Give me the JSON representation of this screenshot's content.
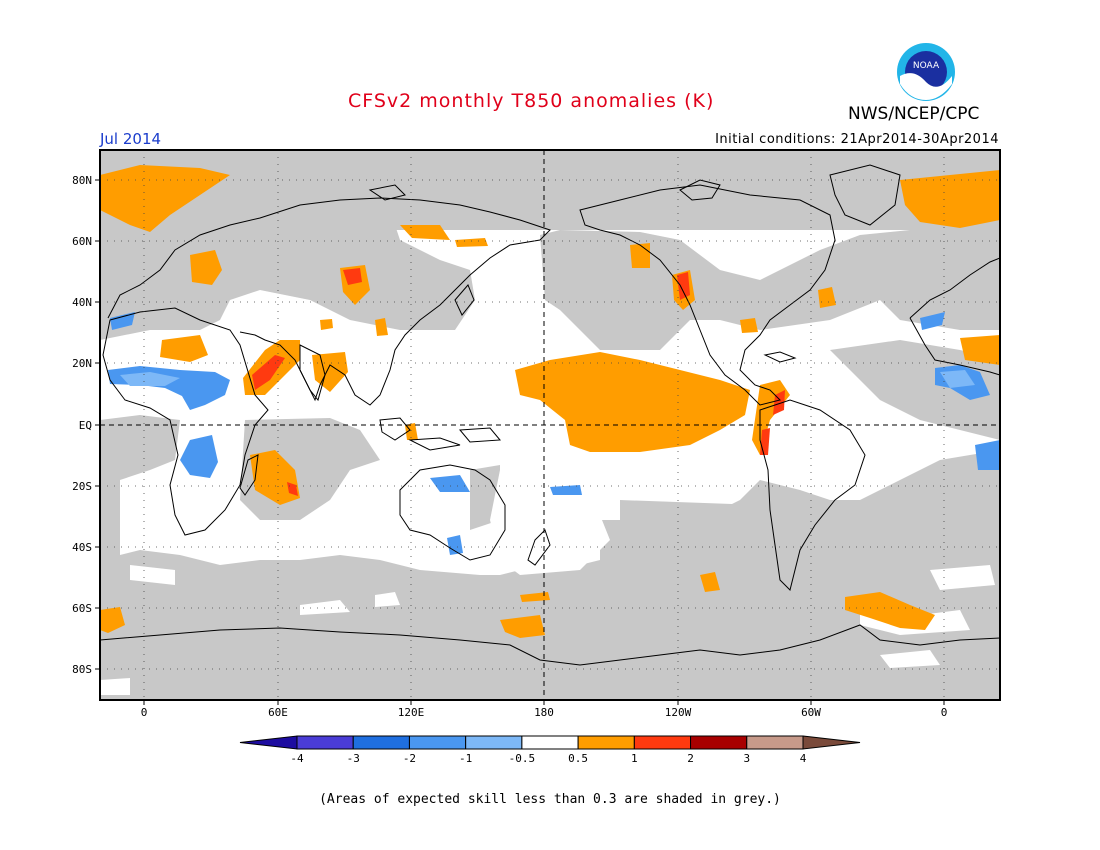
{
  "title": "CFSv2 monthly T850 anomalies (K)",
  "month": "Jul 2014",
  "initial_conditions": "Initial conditions: 21Apr2014-30Apr2014",
  "org_label": "NWS/NCEP/CPC",
  "logo_text": "NOAA",
  "lat_labels": [
    "80N",
    "60N",
    "40N",
    "20N",
    "EQ",
    "20S",
    "40S",
    "60S",
    "80S"
  ],
  "lon_labels": [
    "0",
    "60E",
    "120E",
    "180",
    "120W",
    "60W",
    "0"
  ],
  "colorbar": {
    "labels": [
      "-4",
      "-3",
      "-2",
      "-1",
      "-0.5",
      "0.5",
      "1",
      "2",
      "3",
      "4"
    ],
    "colors": [
      "#1d0ca0",
      "#4a3cd6",
      "#1f6fe0",
      "#4a97f0",
      "#7db8f7",
      "#ffffff",
      "#ff9d00",
      "#ff3a10",
      "#a80000",
      "#c79a8a",
      "#7a4a3a"
    ]
  },
  "colors": {
    "skill_mask_grey": "#c8c8c8",
    "positive_anomaly": "#ff9d00",
    "strong_positive": "#ff3a10",
    "negative_anomaly": "#4a97f0"
  },
  "footnote": "(Areas of expected skill less than 0.3 are shaded in grey.)"
}
